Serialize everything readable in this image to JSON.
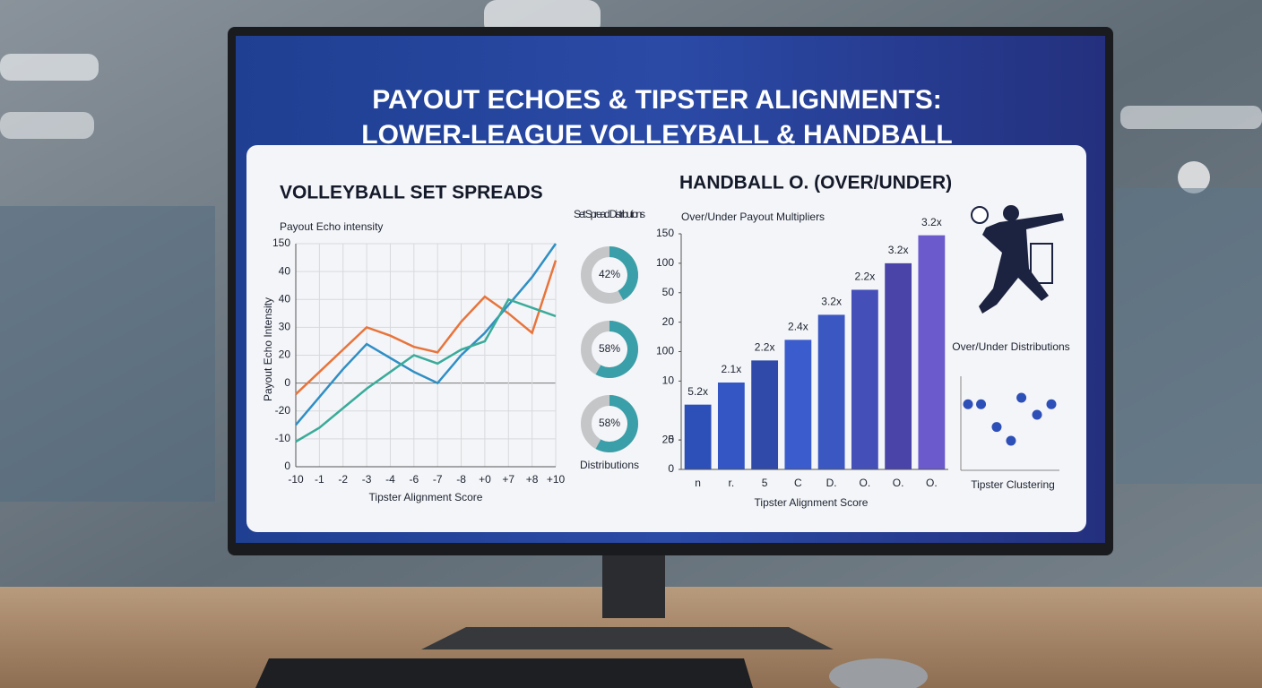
{
  "title": [
    "PAYOUT ECHOES & TIPSTER ALIGNMENTS:",
    "LOWER-LEAGUE VOLLEYBALL & HANDBALL"
  ],
  "chart_data": [
    {
      "type": "line",
      "title": "VOLLEYBALL SET SPREADS",
      "subtitle": "Payout Echo intensity",
      "y_label": "Payout Echo Intensity",
      "x_label": "Tipster Alignment Score",
      "categories": [
        "-10",
        "-1",
        "-2",
        "-3",
        "-4",
        "-6",
        "-7",
        "-8",
        "+0",
        "+7",
        "+8",
        "+10"
      ],
      "series": [
        {
          "color": "#e8743b",
          "values": [
            -4,
            4,
            12,
            20,
            17,
            13,
            11,
            22,
            31,
            25,
            18,
            44
          ]
        },
        {
          "color": "#2f8fc4",
          "values": [
            -15,
            -5,
            5,
            14,
            9,
            4,
            0,
            10,
            18,
            28,
            38,
            50
          ]
        },
        {
          "color": "#3aab9a",
          "values": [
            -21,
            -16,
            -9,
            -2,
            4,
            10,
            7,
            12,
            15,
            30,
            27,
            24
          ]
        }
      ],
      "ylim": [
        -30,
        50
      ],
      "yticks": [
        {
          "value": -30,
          "label": "0"
        },
        {
          "value": -20,
          "label": "-10"
        },
        {
          "value": -10,
          "label": "-20"
        },
        0,
        {
          "value": 10,
          "label": "20"
        },
        {
          "value": 20,
          "label": "30"
        },
        {
          "value": 30,
          "label": "40"
        },
        40,
        {
          "value": 50,
          "label": "150"
        }
      ],
      "grid": true
    },
    {
      "type": "donut",
      "title": "Set Spread Distributions",
      "footer": "Distributions",
      "values": [
        42,
        58,
        58
      ],
      "value_labels": [
        "42%",
        "58%",
        "58%"
      ],
      "color": "#3a9fa8",
      "rest_color": "#c4c6c8"
    },
    {
      "type": "bar",
      "title": "HANDBALL O. (OVER/UNDER)",
      "subtitle": "Over/Under Payout Multipliers",
      "x_label": "Tipster Alignment Score",
      "categories": [
        "n",
        "r.",
        "5",
        "C",
        "D.",
        "O.",
        "O.",
        "O."
      ],
      "values": [
        44,
        59,
        74,
        88,
        105,
        122,
        140,
        159
      ],
      "bar_labels": [
        "5.2x",
        "2.1x",
        "2.2x",
        "2.4x",
        "3.2x",
        "2.2x",
        "3.2x",
        "3.2x"
      ],
      "colors": [
        "#2d4fb8",
        "#3356c4",
        "#2f4aa8",
        "#3b5ccc",
        "#3a57c2",
        "#4450b8",
        "#4a44a8",
        "#6a5acc"
      ],
      "ylim": [
        0,
        160
      ],
      "yticks": [
        0,
        {
          "value": 20,
          "label": "5"
        },
        20,
        {
          "value": 60,
          "label": "10"
        },
        {
          "value": 80,
          "label": "100"
        },
        {
          "value": 100,
          "label": "20"
        },
        {
          "value": 120,
          "label": "50"
        },
        {
          "value": 140,
          "label": "100"
        },
        {
          "value": 160,
          "label": "150"
        }
      ]
    },
    {
      "type": "scatter",
      "title": "Over/Under Distributions",
      "x_label": "Tipster Clustering",
      "x": [
        1,
        2,
        3.2,
        4.3,
        5.1,
        6.3,
        7.4
      ],
      "values": [
        7,
        7,
        4.2,
        2.5,
        7.8,
        5.7,
        7
      ],
      "color": "#2d4fb8"
    }
  ]
}
